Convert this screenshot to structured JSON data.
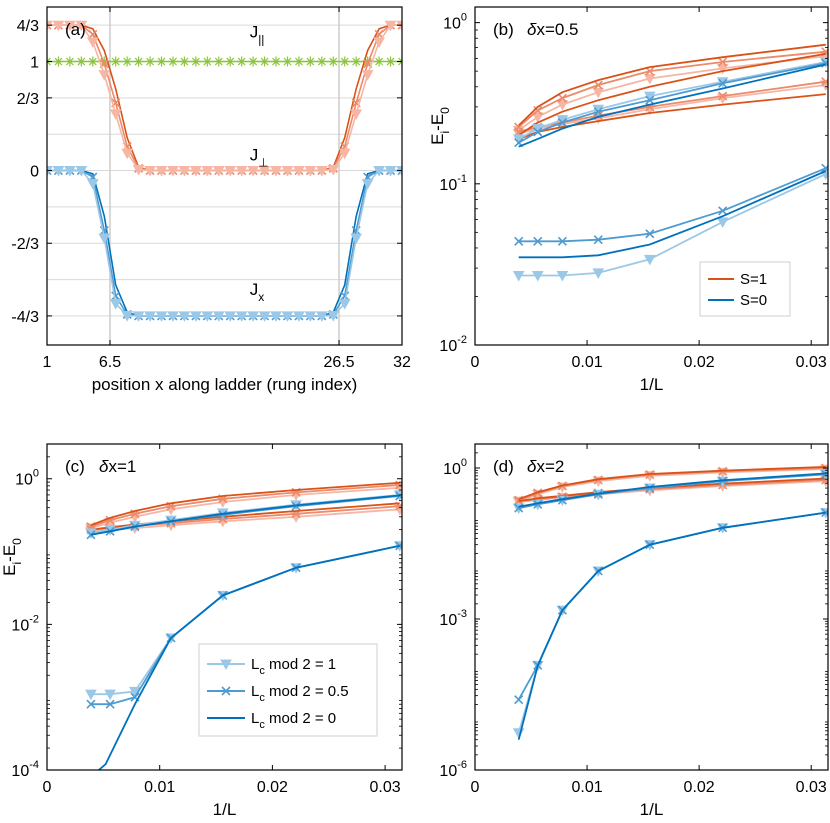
{
  "colors": {
    "orange_dark": "#D95319",
    "orange_mid": "#EC8A6A",
    "orange_light": "#F6B6A3",
    "blue_dark": "#0072BD",
    "blue_mid": "#4F9BD0",
    "blue_light": "#9CC8E8",
    "green": "#8CC63F",
    "grid": "#d9d9d9",
    "vline": "#cccccc"
  },
  "chart_data": [
    {
      "panel": "a",
      "type": "line",
      "label": "(a)",
      "xlabel": "position x along ladder (rung index)",
      "xlim": [
        1,
        32
      ],
      "ylim": [
        -1.6,
        1.5
      ],
      "xticks": [
        1,
        6.5,
        26.5,
        32
      ],
      "xtick_labels": [
        "1",
        "6.5",
        "26.5",
        "32"
      ],
      "yticks": [
        1.3333,
        1,
        0.6667,
        0,
        -0.6667,
        -1.3333
      ],
      "ytick_labels": [
        "4/3",
        "1",
        "2/3",
        "0",
        "-2/3",
        "-4/3"
      ],
      "ygrid": [
        1.3333,
        1,
        0.6667,
        0.3333,
        0,
        -0.3333,
        -0.6667,
        -1,
        -1.3333
      ],
      "vlines": [
        6.5,
        26.5
      ],
      "annotations": [
        {
          "text": "J",
          "sub": "||",
          "x": 18.7,
          "y": 1.22
        },
        {
          "text": "J",
          "sub": "⊥",
          "x": 18.7,
          "y": 0.09
        },
        {
          "text": "J",
          "sub": "x",
          "x": 18.7,
          "y": -1.14
        }
      ],
      "series": [
        {
          "name": "J_parallel",
          "color_key": "green",
          "values": [
            1,
            1,
            1,
            1,
            1,
            1,
            1,
            1,
            1,
            1,
            1,
            1,
            1,
            1,
            1,
            1,
            1,
            1,
            1,
            1,
            1,
            1,
            1,
            1,
            1,
            1,
            1,
            1,
            1,
            1,
            1,
            1
          ]
        },
        {
          "name": "J_perp L_c mod 2 = 0",
          "color_key": "orange_dark",
          "values": [
            1.333,
            1.333,
            1.333,
            1.333,
            1.3,
            1.1,
            0.75,
            0.3,
            0.03,
            0,
            0,
            0,
            0,
            0,
            0,
            0,
            0,
            0,
            0,
            0,
            0,
            0,
            0,
            0,
            0,
            0.03,
            0.3,
            0.75,
            1.1,
            1.3,
            1.333,
            1.333
          ]
        },
        {
          "name": "J_perp L_c mod 2 = 0.5",
          "color_key": "orange_mid",
          "values": [
            1.333,
            1.333,
            1.333,
            1.333,
            1.25,
            0.98,
            0.62,
            0.22,
            0.02,
            0,
            0,
            0,
            0,
            0,
            0,
            0,
            0,
            0,
            0,
            0,
            0,
            0,
            0,
            0,
            0,
            0.02,
            0.22,
            0.62,
            0.98,
            1.25,
            1.333,
            1.333
          ]
        },
        {
          "name": "J_perp L_c mod 2 = 1",
          "color_key": "orange_light",
          "values": [
            1.333,
            1.333,
            1.333,
            1.333,
            1.18,
            0.88,
            0.52,
            0.16,
            0.01,
            0,
            0,
            0,
            0,
            0,
            0,
            0,
            0,
            0,
            0,
            0,
            0,
            0,
            0,
            0,
            0,
            0.01,
            0.16,
            0.52,
            0.88,
            1.18,
            1.333,
            1.333
          ]
        },
        {
          "name": "J_x L_c mod 2 = 0",
          "color_key": "blue_dark",
          "values": [
            0,
            0,
            0,
            0,
            -0.03,
            -0.42,
            -1.05,
            -1.3,
            -1.333,
            -1.333,
            -1.333,
            -1.333,
            -1.333,
            -1.333,
            -1.333,
            -1.333,
            -1.333,
            -1.333,
            -1.333,
            -1.333,
            -1.333,
            -1.333,
            -1.333,
            -1.333,
            -1.333,
            -1.3,
            -1.05,
            -0.42,
            -0.03,
            0,
            0,
            0
          ]
        },
        {
          "name": "J_x L_c mod 2 = 0.5",
          "color_key": "blue_mid",
          "values": [
            0,
            0,
            0,
            0,
            -0.06,
            -0.55,
            -1.15,
            -1.32,
            -1.333,
            -1.333,
            -1.333,
            -1.333,
            -1.333,
            -1.333,
            -1.333,
            -1.333,
            -1.333,
            -1.333,
            -1.333,
            -1.333,
            -1.333,
            -1.333,
            -1.333,
            -1.333,
            -1.333,
            -1.32,
            -1.15,
            -0.55,
            -0.06,
            0,
            0,
            0
          ]
        },
        {
          "name": "J_x L_c mod 2 = 1",
          "color_key": "blue_light",
          "values": [
            0,
            0,
            0,
            0,
            -0.12,
            -0.62,
            -1.22,
            -1.33,
            -1.333,
            -1.333,
            -1.333,
            -1.333,
            -1.333,
            -1.333,
            -1.333,
            -1.333,
            -1.333,
            -1.333,
            -1.333,
            -1.333,
            -1.333,
            -1.333,
            -1.333,
            -1.333,
            -1.333,
            -1.33,
            -1.22,
            -0.62,
            -0.12,
            0,
            0,
            0
          ]
        }
      ]
    },
    {
      "panel": "b",
      "type": "line",
      "label": "(b)",
      "title": "δx=0.5",
      "xlabel": "1/L",
      "ylabel": "E_i-E_0",
      "yscale": "log",
      "xlim": [
        0,
        0.0315
      ],
      "ylim": [
        0.01,
        1.25
      ],
      "xticks": [
        0,
        0.01,
        0.02,
        0.03
      ],
      "xtick_labels": [
        "0",
        "0.01",
        "0.02",
        "0.03"
      ],
      "yticks": [
        1,
        0.1,
        0.01
      ],
      "ytick_labels": [
        [
          "10",
          "0"
        ],
        [
          "10",
          "-1"
        ],
        [
          "10",
          "-2"
        ]
      ],
      "x": [
        0.0039,
        0.0056,
        0.0078,
        0.011,
        0.0156,
        0.0221,
        0.0313
      ],
      "legend": [
        {
          "label": "S=1",
          "color_key": "orange_dark"
        },
        {
          "label": "S=0",
          "color_key": "blue_dark"
        }
      ],
      "series": [
        {
          "color_key": "orange_light",
          "marker": "tri",
          "values": [
            0.215,
            0.26,
            0.31,
            0.37,
            0.45,
            0.52,
            0.62
          ]
        },
        {
          "color_key": "orange_light",
          "marker": "tri",
          "values": [
            0.205,
            0.22,
            0.235,
            0.255,
            0.29,
            0.34,
            0.41
          ]
        },
        {
          "color_key": "orange_mid",
          "marker": "x",
          "values": [
            0.225,
            0.285,
            0.34,
            0.41,
            0.5,
            0.57,
            0.66
          ]
        },
        {
          "color_key": "orange_mid",
          "marker": "x",
          "values": [
            0.21,
            0.225,
            0.24,
            0.265,
            0.3,
            0.35,
            0.43
          ]
        },
        {
          "color_key": "orange_dark",
          "marker": "none",
          "values": [
            0.23,
            0.3,
            0.37,
            0.44,
            0.53,
            0.61,
            0.73
          ]
        },
        {
          "color_key": "orange_dark",
          "marker": "none",
          "values": [
            0.19,
            0.21,
            0.225,
            0.245,
            0.275,
            0.31,
            0.36
          ]
        },
        {
          "color_key": "orange_dark",
          "marker": "none",
          "values": [
            0.2,
            0.24,
            0.28,
            0.33,
            0.4,
            0.5,
            0.64
          ]
        },
        {
          "color_key": "blue_light",
          "marker": "tri",
          "values": [
            0.19,
            0.22,
            0.25,
            0.29,
            0.35,
            0.43,
            0.57
          ]
        },
        {
          "color_key": "blue_mid",
          "marker": "x",
          "values": [
            0.18,
            0.21,
            0.24,
            0.28,
            0.33,
            0.42,
            0.56
          ]
        },
        {
          "color_key": "blue_dark",
          "marker": "none",
          "values": [
            0.17,
            0.19,
            0.22,
            0.26,
            0.31,
            0.39,
            0.55
          ]
        },
        {
          "color_key": "blue_light",
          "marker": "tri",
          "values": [
            0.027,
            0.027,
            0.027,
            0.028,
            0.034,
            0.058,
            0.115
          ]
        },
        {
          "color_key": "blue_mid",
          "marker": "x",
          "values": [
            0.044,
            0.044,
            0.044,
            0.045,
            0.049,
            0.068,
            0.125
          ]
        },
        {
          "color_key": "blue_dark",
          "marker": "none",
          "values": [
            0.035,
            0.035,
            0.035,
            0.036,
            0.042,
            0.063,
            0.12
          ]
        }
      ]
    },
    {
      "panel": "c",
      "type": "line",
      "label": "(c)",
      "title": "δx=1",
      "xlabel": "1/L",
      "ylabel": "E_i-E_0",
      "yscale": "log",
      "xlim": [
        0,
        0.0315
      ],
      "ylim": [
        0.0001,
        3
      ],
      "xticks": [
        0,
        0.01,
        0.02,
        0.03
      ],
      "xtick_labels": [
        "0",
        "0.01",
        "0.02",
        "0.03"
      ],
      "yticks": [
        1,
        0.01,
        0.0001
      ],
      "ytick_labels": [
        [
          "10",
          "0"
        ],
        [
          "10",
          "-2"
        ],
        [
          "10",
          "-4"
        ]
      ],
      "x": [
        0.0039,
        0.0056,
        0.0078,
        0.011,
        0.0156,
        0.0221,
        0.0313
      ],
      "legend": [
        {
          "label": "L",
          "sub": "c",
          "rest": " mod 2 = 1",
          "color_key": "blue_light",
          "marker": "tri"
        },
        {
          "label": "L",
          "sub": "c",
          "rest": " mod 2 = 0.5",
          "color_key": "blue_mid",
          "marker": "x"
        },
        {
          "label": "L",
          "sub": "c",
          "rest": " mod 2 = 0",
          "color_key": "blue_dark",
          "marker": "none"
        }
      ],
      "series": [
        {
          "color_key": "orange_light",
          "marker": "tri",
          "values": [
            0.21,
            0.25,
            0.3,
            0.38,
            0.48,
            0.6,
            0.75
          ]
        },
        {
          "color_key": "orange_light",
          "marker": "tri",
          "values": [
            0.19,
            0.2,
            0.21,
            0.23,
            0.26,
            0.3,
            0.38
          ]
        },
        {
          "color_key": "orange_mid",
          "marker": "x",
          "values": [
            0.22,
            0.27,
            0.33,
            0.42,
            0.53,
            0.65,
            0.82
          ]
        },
        {
          "color_key": "orange_mid",
          "marker": "x",
          "values": [
            0.2,
            0.21,
            0.225,
            0.245,
            0.28,
            0.33,
            0.42
          ]
        },
        {
          "color_key": "orange_dark",
          "marker": "none",
          "values": [
            0.23,
            0.29,
            0.36,
            0.46,
            0.58,
            0.7,
            0.88
          ]
        },
        {
          "color_key": "orange_dark",
          "marker": "none",
          "values": [
            0.2,
            0.215,
            0.235,
            0.26,
            0.3,
            0.36,
            0.46
          ]
        },
        {
          "color_key": "blue_light",
          "marker": "tri",
          "values": [
            0.18,
            0.2,
            0.23,
            0.27,
            0.34,
            0.44,
            0.6
          ]
        },
        {
          "color_key": "blue_mid",
          "marker": "x",
          "values": [
            0.17,
            0.19,
            0.22,
            0.26,
            0.32,
            0.42,
            0.58
          ]
        },
        {
          "color_key": "blue_dark",
          "marker": "none",
          "values": [
            0.17,
            0.19,
            0.22,
            0.26,
            0.33,
            0.43,
            0.59
          ]
        },
        {
          "color_key": "blue_light",
          "marker": "tri",
          "values": [
            0.0011,
            0.0011,
            0.0012,
            0.0065,
            0.025,
            0.06,
            0.12
          ]
        },
        {
          "color_key": "blue_mid",
          "marker": "x",
          "values": [
            0.0008,
            0.0008,
            0.001,
            0.0065,
            0.025,
            0.06,
            0.12
          ]
        },
        {
          "color_key": "blue_dark",
          "marker": "none",
          "x": [
            0.0046,
            0.0052,
            0.0078,
            0.011,
            0.0156,
            0.0221,
            0.0313
          ],
          "values": [
            0.0001,
            0.00012,
            0.0008,
            0.0065,
            0.025,
            0.06,
            0.12
          ]
        }
      ]
    },
    {
      "panel": "d",
      "type": "line",
      "label": "(d)",
      "title": "δx=2",
      "xlabel": "1/L",
      "yscale": "log",
      "xlim": [
        0,
        0.0315
      ],
      "ylim": [
        1e-06,
        3
      ],
      "xticks": [
        0,
        0.01,
        0.02,
        0.03
      ],
      "xtick_labels": [
        "0",
        "0.01",
        "0.02",
        "0.03"
      ],
      "yticks": [
        1,
        0.001,
        1e-06
      ],
      "ytick_labels": [
        [
          "10",
          "0"
        ],
        [
          "10",
          "-3"
        ],
        [
          "10",
          "-6"
        ]
      ],
      "x": [
        0.0039,
        0.0056,
        0.0078,
        0.011,
        0.0156,
        0.0221,
        0.0313
      ],
      "series": [
        {
          "color_key": "orange_light",
          "marker": "tri",
          "values": [
            0.22,
            0.3,
            0.42,
            0.55,
            0.7,
            0.82,
            0.95
          ]
        },
        {
          "color_key": "orange_light",
          "marker": "tri",
          "values": [
            0.21,
            0.23,
            0.26,
            0.3,
            0.36,
            0.44,
            0.55
          ]
        },
        {
          "color_key": "orange_mid",
          "marker": "x",
          "values": [
            0.23,
            0.32,
            0.44,
            0.58,
            0.74,
            0.86,
            1.0
          ]
        },
        {
          "color_key": "orange_mid",
          "marker": "x",
          "values": [
            0.22,
            0.24,
            0.27,
            0.32,
            0.38,
            0.46,
            0.58
          ]
        },
        {
          "color_key": "orange_dark",
          "marker": "none",
          "values": [
            0.24,
            0.33,
            0.45,
            0.6,
            0.76,
            0.89,
            1.05
          ]
        },
        {
          "color_key": "orange_dark",
          "marker": "none",
          "values": [
            0.22,
            0.25,
            0.28,
            0.33,
            0.4,
            0.49,
            0.62
          ]
        },
        {
          "color_key": "blue_light",
          "marker": "tri",
          "values": [
            0.16,
            0.19,
            0.23,
            0.3,
            0.4,
            0.55,
            0.75
          ]
        },
        {
          "color_key": "blue_mid",
          "marker": "x",
          "values": [
            0.16,
            0.19,
            0.23,
            0.3,
            0.4,
            0.55,
            0.75
          ]
        },
        {
          "color_key": "blue_dark",
          "marker": "none",
          "values": [
            0.17,
            0.2,
            0.24,
            0.31,
            0.42,
            0.57,
            0.78
          ]
        },
        {
          "color_key": "blue_light",
          "marker": "tri",
          "values": [
            5.5e-06,
            0.00012,
            0.0015,
            0.009,
            0.03,
            0.065,
            0.13
          ]
        },
        {
          "color_key": "blue_mid",
          "marker": "x",
          "values": [
            2.5e-05,
            0.00012,
            0.0015,
            0.009,
            0.03,
            0.065,
            0.13
          ]
        },
        {
          "color_key": "blue_dark",
          "marker": "none",
          "values": [
            4e-06,
            0.00012,
            0.0015,
            0.009,
            0.03,
            0.065,
            0.13
          ]
        }
      ]
    }
  ]
}
